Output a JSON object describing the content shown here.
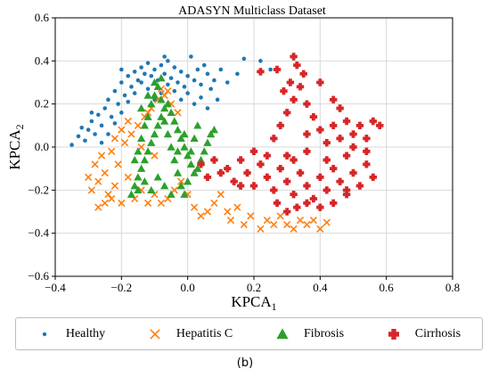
{
  "chart_data": {
    "type": "scatter",
    "title": "ADASYN Multiclass Dataset",
    "xlabel": "KPCA",
    "xlabel_sub": "1",
    "ylabel": "KPCA",
    "ylabel_sub": "2",
    "xlim": [
      -0.4,
      0.8
    ],
    "ylim": [
      -0.6,
      0.6
    ],
    "xticks": [
      -0.4,
      -0.2,
      0.0,
      0.2,
      0.4,
      0.6,
      0.8
    ],
    "yticks": [
      -0.6,
      -0.4,
      -0.2,
      0.0,
      0.2,
      0.4,
      0.6
    ],
    "xtick_labels": [
      "−0.4",
      "−0.2",
      "0.0",
      "0.2",
      "0.4",
      "0.6",
      "0.8"
    ],
    "ytick_labels": [
      "−0.6",
      "−0.4",
      "−0.2",
      "0.0",
      "0.2",
      "0.4",
      "0.6"
    ],
    "grid": true,
    "legend_position": "bottom-outside",
    "series": [
      {
        "name": "Healthy",
        "marker": "circle",
        "color": "#1f77b4",
        "points": [
          [
            -0.35,
            0.01
          ],
          [
            -0.33,
            0.05
          ],
          [
            -0.31,
            0.03
          ],
          [
            -0.3,
            0.08
          ],
          [
            -0.29,
            0.12
          ],
          [
            -0.28,
            0.06
          ],
          [
            -0.27,
            0.15
          ],
          [
            -0.26,
            0.1
          ],
          [
            -0.25,
            0.18
          ],
          [
            -0.24,
            0.22
          ],
          [
            -0.23,
            0.14
          ],
          [
            -0.22,
            0.26
          ],
          [
            -0.21,
            0.2
          ],
          [
            -0.2,
            0.3
          ],
          [
            -0.19,
            0.24
          ],
          [
            -0.18,
            0.33
          ],
          [
            -0.17,
            0.28
          ],
          [
            -0.16,
            0.35
          ],
          [
            -0.15,
            0.31
          ],
          [
            -0.14,
            0.37
          ],
          [
            -0.13,
            0.34
          ],
          [
            -0.12,
            0.39
          ],
          [
            -0.11,
            0.33
          ],
          [
            -0.1,
            0.36
          ],
          [
            -0.09,
            0.31
          ],
          [
            -0.08,
            0.38
          ],
          [
            -0.07,
            0.34
          ],
          [
            -0.06,
            0.4
          ],
          [
            -0.05,
            0.32
          ],
          [
            -0.04,
            0.37
          ],
          [
            -0.03,
            0.3
          ],
          [
            -0.02,
            0.35
          ],
          [
            -0.01,
            0.28
          ],
          [
            0.0,
            0.33
          ],
          [
            0.01,
            0.42
          ],
          [
            0.02,
            0.31
          ],
          [
            0.03,
            0.36
          ],
          [
            0.04,
            0.29
          ],
          [
            0.05,
            0.38
          ],
          [
            0.06,
            0.34
          ],
          [
            0.07,
            0.27
          ],
          [
            0.08,
            0.31
          ],
          [
            0.1,
            0.36
          ],
          [
            -0.26,
            0.02
          ],
          [
            -0.24,
            0.06
          ],
          [
            -0.22,
            0.11
          ],
          [
            -0.2,
            0.16
          ],
          [
            -0.18,
            0.21
          ],
          [
            -0.16,
            0.25
          ],
          [
            -0.12,
            0.27
          ],
          [
            -0.1,
            0.22
          ],
          [
            -0.08,
            0.25
          ],
          [
            -0.06,
            0.29
          ],
          [
            -0.04,
            0.26
          ],
          [
            -0.02,
            0.22
          ],
          [
            0.0,
            0.25
          ],
          [
            0.02,
            0.2
          ],
          [
            0.04,
            0.23
          ],
          [
            0.06,
            0.18
          ],
          [
            0.09,
            0.22
          ],
          [
            0.12,
            0.3
          ],
          [
            0.15,
            0.34
          ],
          [
            0.17,
            0.41
          ],
          [
            0.22,
            0.4
          ],
          [
            0.25,
            0.36
          ],
          [
            -0.29,
            0.16
          ],
          [
            -0.32,
            0.09
          ],
          [
            -0.2,
            0.36
          ],
          [
            -0.14,
            0.3
          ],
          [
            -0.07,
            0.42
          ]
        ]
      },
      {
        "name": "Hepatitis C",
        "marker": "x",
        "color": "#ff7f0e",
        "points": [
          [
            -0.3,
            -0.14
          ],
          [
            -0.29,
            -0.2
          ],
          [
            -0.28,
            -0.08
          ],
          [
            -0.27,
            -0.16
          ],
          [
            -0.26,
            -0.04
          ],
          [
            -0.25,
            -0.12
          ],
          [
            -0.24,
            -0.22
          ],
          [
            -0.23,
            -0.02
          ],
          [
            -0.22,
            -0.18
          ],
          [
            -0.21,
            -0.08
          ],
          [
            -0.2,
            -0.26
          ],
          [
            -0.19,
            0.02
          ],
          [
            -0.18,
            -0.14
          ],
          [
            -0.17,
            0.06
          ],
          [
            -0.16,
            -0.24
          ],
          [
            -0.15,
            0.1
          ],
          [
            -0.14,
            -0.2
          ],
          [
            -0.13,
            0.14
          ],
          [
            -0.12,
            -0.26
          ],
          [
            -0.11,
            0.18
          ],
          [
            -0.1,
            -0.22
          ],
          [
            -0.09,
            0.22
          ],
          [
            -0.08,
            -0.26
          ],
          [
            -0.07,
            0.24
          ],
          [
            -0.06,
            -0.24
          ],
          [
            -0.05,
            0.2
          ],
          [
            -0.04,
            -0.2
          ],
          [
            -0.03,
            0.16
          ],
          [
            -0.02,
            -0.16
          ],
          [
            0.0,
            -0.22
          ],
          [
            -0.27,
            -0.28
          ],
          [
            -0.25,
            -0.26
          ],
          [
            -0.23,
            -0.24
          ],
          [
            -0.22,
            0.04
          ],
          [
            -0.2,
            0.08
          ],
          [
            -0.18,
            0.12
          ],
          [
            0.02,
            -0.28
          ],
          [
            0.04,
            -0.32
          ],
          [
            0.06,
            -0.3
          ],
          [
            0.08,
            -0.26
          ],
          [
            0.1,
            -0.22
          ],
          [
            0.12,
            -0.3
          ],
          [
            0.13,
            -0.34
          ],
          [
            0.15,
            -0.28
          ],
          [
            0.17,
            -0.36
          ],
          [
            0.19,
            -0.32
          ],
          [
            0.22,
            -0.38
          ],
          [
            0.24,
            -0.34
          ],
          [
            0.26,
            -0.36
          ],
          [
            0.28,
            -0.32
          ],
          [
            0.3,
            -0.36
          ],
          [
            0.32,
            -0.38
          ],
          [
            0.34,
            -0.34
          ],
          [
            0.36,
            -0.36
          ],
          [
            0.38,
            -0.34
          ],
          [
            0.4,
            -0.38
          ],
          [
            0.42,
            -0.35
          ],
          [
            -0.1,
            -0.04
          ],
          [
            -0.14,
            0.0
          ],
          [
            -0.12,
            0.16
          ],
          [
            -0.06,
            0.26
          ],
          [
            -0.08,
            0.27
          ]
        ]
      },
      {
        "name": "Fibrosis",
        "marker": "triangle",
        "color": "#2ca02c",
        "points": [
          [
            -0.17,
            -0.22
          ],
          [
            -0.16,
            -0.18
          ],
          [
            -0.15,
            -0.14
          ],
          [
            -0.14,
            -0.1
          ],
          [
            -0.13,
            -0.06
          ],
          [
            -0.12,
            -0.02
          ],
          [
            -0.11,
            0.02
          ],
          [
            -0.1,
            0.06
          ],
          [
            -0.09,
            0.1
          ],
          [
            -0.08,
            0.14
          ],
          [
            -0.07,
            0.18
          ],
          [
            -0.06,
            0.2
          ],
          [
            -0.05,
            0.16
          ],
          [
            -0.04,
            0.12
          ],
          [
            -0.03,
            0.08
          ],
          [
            -0.02,
            0.04
          ],
          [
            -0.01,
            0.0
          ],
          [
            0.0,
            -0.04
          ],
          [
            0.01,
            -0.08
          ],
          [
            0.02,
            -0.12
          ],
          [
            0.03,
            -0.1
          ],
          [
            0.04,
            -0.06
          ],
          [
            0.05,
            -0.02
          ],
          [
            0.06,
            0.02
          ],
          [
            0.07,
            0.06
          ],
          [
            0.08,
            0.08
          ],
          [
            -0.16,
            -0.06
          ],
          [
            -0.15,
            -0.02
          ],
          [
            -0.14,
            0.04
          ],
          [
            -0.13,
            0.1
          ],
          [
            -0.12,
            0.14
          ],
          [
            -0.11,
            0.2
          ],
          [
            -0.1,
            0.24
          ],
          [
            -0.09,
            0.28
          ],
          [
            -0.08,
            0.22
          ],
          [
            -0.07,
            0.12
          ],
          [
            -0.06,
            0.06
          ],
          [
            -0.05,
            0.0
          ],
          [
            -0.04,
            -0.06
          ],
          [
            -0.03,
            -0.12
          ],
          [
            -0.02,
            -0.18
          ],
          [
            -0.01,
            -0.22
          ],
          [
            0.0,
            -0.16
          ],
          [
            0.01,
            -0.02
          ],
          [
            0.02,
            0.04
          ],
          [
            0.03,
            0.1
          ],
          [
            -0.15,
            -0.2
          ],
          [
            -0.13,
            -0.16
          ],
          [
            -0.11,
            -0.2
          ],
          [
            -0.09,
            -0.14
          ],
          [
            -0.07,
            -0.18
          ],
          [
            -0.05,
            -0.22
          ],
          [
            -0.03,
            -0.02
          ],
          [
            -0.01,
            0.06
          ],
          [
            -0.14,
            0.18
          ],
          [
            -0.12,
            0.24
          ],
          [
            -0.1,
            0.3
          ],
          [
            -0.08,
            0.32
          ]
        ]
      },
      {
        "name": "Cirrhosis",
        "marker": "plus",
        "color": "#d62728",
        "points": [
          [
            0.04,
            -0.08
          ],
          [
            0.06,
            -0.14
          ],
          [
            0.08,
            -0.06
          ],
          [
            0.1,
            -0.12
          ],
          [
            0.12,
            -0.1
          ],
          [
            0.14,
            -0.16
          ],
          [
            0.16,
            -0.06
          ],
          [
            0.18,
            -0.12
          ],
          [
            0.2,
            -0.18
          ],
          [
            0.22,
            -0.08
          ],
          [
            0.24,
            -0.14
          ],
          [
            0.26,
            -0.2
          ],
          [
            0.28,
            -0.1
          ],
          [
            0.3,
            -0.16
          ],
          [
            0.32,
            -0.22
          ],
          [
            0.34,
            -0.12
          ],
          [
            0.36,
            -0.18
          ],
          [
            0.38,
            -0.24
          ],
          [
            0.4,
            -0.14
          ],
          [
            0.42,
            -0.2
          ],
          [
            0.44,
            -0.1
          ],
          [
            0.46,
            -0.16
          ],
          [
            0.48,
            -0.22
          ],
          [
            0.5,
            -0.12
          ],
          [
            0.52,
            -0.18
          ],
          [
            0.54,
            -0.08
          ],
          [
            0.56,
            -0.14
          ],
          [
            0.26,
            0.04
          ],
          [
            0.28,
            0.1
          ],
          [
            0.3,
            0.16
          ],
          [
            0.32,
            0.22
          ],
          [
            0.34,
            0.28
          ],
          [
            0.36,
            0.2
          ],
          [
            0.38,
            0.14
          ],
          [
            0.4,
            0.08
          ],
          [
            0.42,
            0.02
          ],
          [
            0.44,
            0.1
          ],
          [
            0.46,
            0.04
          ],
          [
            0.48,
            0.12
          ],
          [
            0.5,
            0.06
          ],
          [
            0.52,
            0.1
          ],
          [
            0.54,
            0.04
          ],
          [
            0.56,
            0.12
          ],
          [
            0.58,
            0.1
          ],
          [
            0.31,
            0.3
          ],
          [
            0.33,
            0.38
          ],
          [
            0.32,
            0.42
          ],
          [
            0.35,
            0.34
          ],
          [
            0.29,
            0.26
          ],
          [
            0.27,
            -0.26
          ],
          [
            0.3,
            -0.3
          ],
          [
            0.33,
            -0.28
          ],
          [
            0.36,
            -0.26
          ],
          [
            0.4,
            -0.28
          ],
          [
            0.44,
            -0.26
          ],
          [
            0.48,
            -0.2
          ],
          [
            0.24,
            -0.04
          ],
          [
            0.3,
            -0.04
          ],
          [
            0.36,
            -0.02
          ],
          [
            0.42,
            -0.06
          ],
          [
            0.48,
            -0.04
          ],
          [
            0.54,
            -0.02
          ],
          [
            0.2,
            -0.02
          ],
          [
            0.16,
            -0.18
          ],
          [
            0.22,
            0.35
          ],
          [
            0.27,
            0.36
          ],
          [
            0.4,
            0.3
          ],
          [
            0.44,
            0.22
          ],
          [
            0.36,
            0.06
          ],
          [
            0.32,
            -0.06
          ],
          [
            0.46,
            0.18
          ],
          [
            0.5,
            0.0
          ]
        ]
      }
    ]
  },
  "legend": {
    "items": [
      {
        "label": "Healthy",
        "marker": "circle",
        "color": "#1f77b4"
      },
      {
        "label": "Hepatitis C",
        "marker": "x",
        "color": "#ff7f0e"
      },
      {
        "label": "Fibrosis",
        "marker": "triangle",
        "color": "#2ca02c"
      },
      {
        "label": "Cirrhosis",
        "marker": "plus",
        "color": "#d62728"
      }
    ]
  },
  "caption": "(b)"
}
